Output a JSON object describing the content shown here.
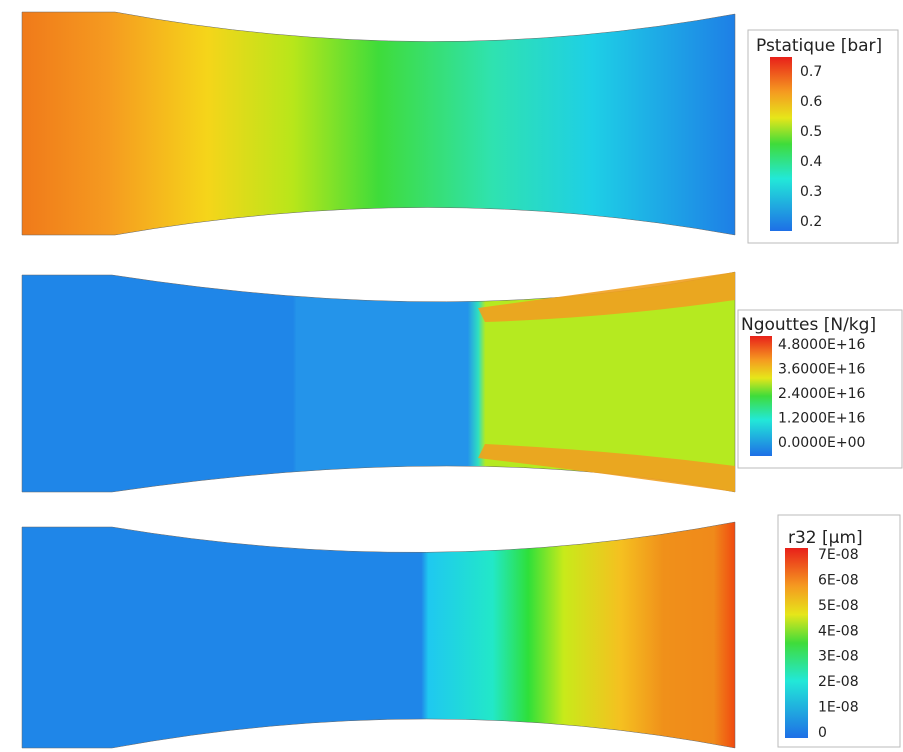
{
  "panels": [
    {
      "legend": {
        "title": "Pstatique [bar]",
        "labels": [
          "0.7",
          "0.6",
          "0.5",
          "0.4",
          "0.3",
          "0.2"
        ]
      }
    },
    {
      "legend": {
        "title": "Ngouttes [N/kg]",
        "labels": [
          "4.8000E+16",
          "3.6000E+16",
          "2.4000E+16",
          "1.2000E+16",
          "0.0000E+00"
        ]
      }
    },
    {
      "legend": {
        "title": "r32 [µm]",
        "labels": [
          "7E-08",
          "6E-08",
          "5E-08",
          "4E-08",
          "3E-08",
          "2E-08",
          "1E-08",
          "0"
        ]
      }
    }
  ]
}
